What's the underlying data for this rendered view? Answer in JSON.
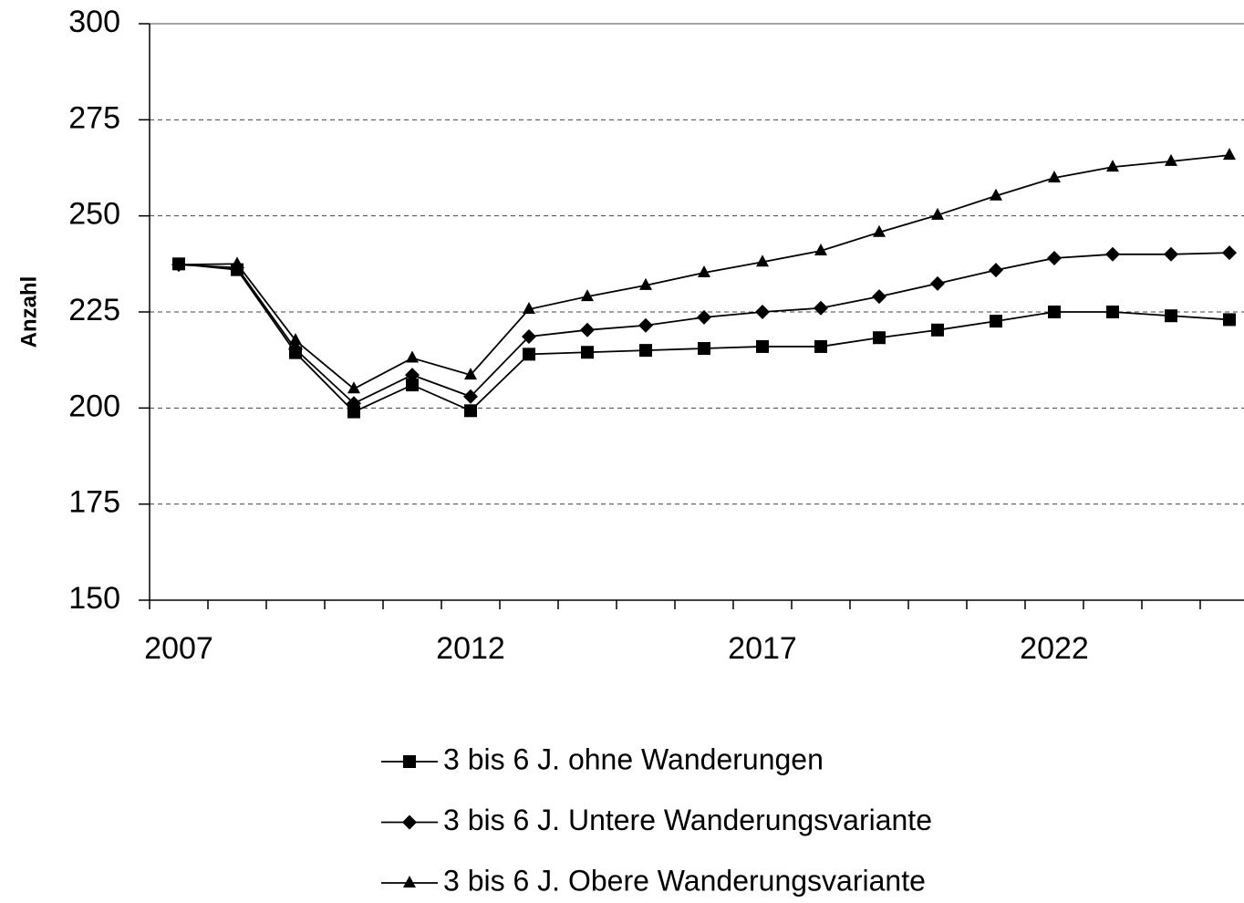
{
  "chart_data": {
    "type": "line",
    "y_label": "Anzahl",
    "categories": [
      "2007",
      null,
      null,
      null,
      null,
      "2012",
      null,
      null,
      null,
      null,
      "2017",
      null,
      null,
      null,
      null,
      "2022",
      null,
      null,
      null
    ],
    "series": [
      {
        "name": "3 bis 6 J. ohne Wanderungen",
        "color": "#000000",
        "marker": "square",
        "values": [
          237.5,
          236,
          214.4,
          199,
          206,
          199.3,
          214,
          214.5,
          215,
          215.5,
          216,
          216,
          218.3,
          220.3,
          222.6,
          225,
          225,
          224,
          223
        ]
      },
      {
        "name": "3 bis 6 J. Untere Wanderungsvariante",
        "color": "#000000",
        "marker": "diamond",
        "values": [
          237.3,
          236.5,
          215.3,
          201.2,
          208.6,
          203,
          218.6,
          220.3,
          221.5,
          223.6,
          225,
          226,
          229,
          232.4,
          235.9,
          239,
          240,
          240,
          240.4
        ]
      },
      {
        "name": "3 bis 6 J. Obere Wanderungsvariante",
        "color": "#000000",
        "marker": "triangle",
        "values": [
          237.3,
          237.5,
          217.6,
          205,
          213,
          208.6,
          225.7,
          229,
          231.9,
          235.2,
          238,
          240.9,
          245.7,
          250.2,
          255.2,
          259.9,
          262.7,
          264.2,
          265.8
        ]
      }
    ],
    "ylim": [
      150,
      300
    ],
    "yticks": [
      150,
      175,
      200,
      225,
      250,
      275,
      300
    ],
    "grid": true
  }
}
